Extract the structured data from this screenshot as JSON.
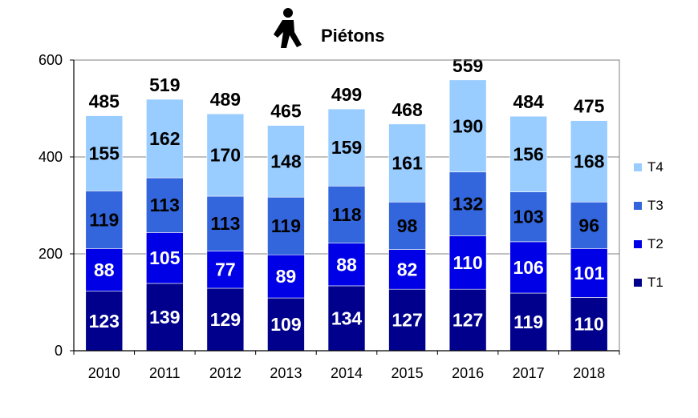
{
  "chart_data": {
    "type": "bar",
    "stacked": true,
    "title": "Piétons",
    "title_icon": "pedestrian-icon",
    "categories": [
      "2010",
      "2011",
      "2012",
      "2013",
      "2014",
      "2015",
      "2016",
      "2017",
      "2018"
    ],
    "series": [
      {
        "name": "T1",
        "color": "#00008c",
        "label_color": "#ffffff",
        "values": [
          123,
          139,
          129,
          109,
          134,
          127,
          127,
          119,
          110
        ]
      },
      {
        "name": "T2",
        "color": "#0000e6",
        "label_color": "#ffffff",
        "values": [
          88,
          105,
          77,
          89,
          88,
          82,
          110,
          106,
          101
        ]
      },
      {
        "name": "T3",
        "color": "#3366dd",
        "label_color": "#000000",
        "values": [
          119,
          113,
          113,
          119,
          118,
          98,
          132,
          103,
          96
        ]
      },
      {
        "name": "T4",
        "color": "#99ccff",
        "label_color": "#000000",
        "values": [
          155,
          162,
          170,
          148,
          159,
          161,
          190,
          156,
          168
        ]
      }
    ],
    "totals": [
      485,
      519,
      489,
      465,
      499,
      468,
      559,
      484,
      475
    ],
    "ylim": [
      0,
      600
    ],
    "yticks": [
      0,
      200,
      400,
      600
    ],
    "grid": true,
    "legend": "right",
    "xlabel": "",
    "ylabel": ""
  }
}
